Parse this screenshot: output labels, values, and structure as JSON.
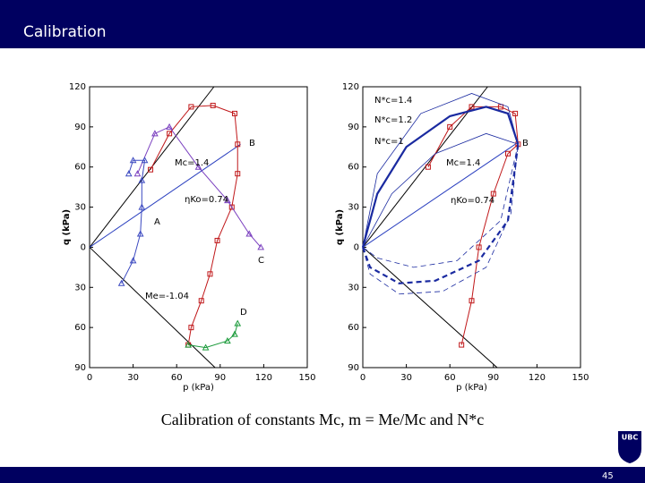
{
  "title": "Calibration",
  "caption": "Calibration of constants Mc, m = Me/Mc and N*c",
  "page_number": "45",
  "logo_text": "UBC",
  "chart_data": [
    {
      "type": "line",
      "xlabel": "p (kPa)",
      "ylabel": "q (kPa)",
      "xlim": [
        0,
        150
      ],
      "ylim": [
        -90,
        120
      ],
      "xticks": [
        0,
        30,
        60,
        90,
        120,
        150
      ],
      "yticks": [
        {
          "value": -90,
          "label": "90"
        },
        {
          "value": -60,
          "label": "60"
        },
        {
          "value": -30,
          "label": "30"
        },
        0,
        30,
        60,
        90,
        120
      ],
      "annotations": [
        "B",
        "C",
        "A",
        "D",
        "Mc=1.4",
        "ηKo=0.74",
        "Me=-1.04"
      ],
      "series": [
        {
          "color": "#000000",
          "x": [
            0,
            85.7
          ],
          "values": [
            0,
            120
          ]
        },
        {
          "color": "#000000",
          "x": [
            0,
            86.5
          ],
          "values": [
            0,
            -90
          ]
        },
        {
          "color": "#2a3fbf",
          "x": [
            0,
            104
          ],
          "values": [
            0,
            77
          ]
        },
        {
          "color": "#c0181a",
          "marker": "square",
          "x": [
            42,
            55,
            70,
            85,
            100,
            102,
            102,
            98,
            88,
            83,
            77,
            70,
            68
          ],
          "values": [
            58,
            85,
            105,
            106,
            100,
            77,
            55,
            30,
            5,
            -20,
            -40,
            -60,
            -73
          ]
        },
        {
          "color": "#7a3fbf",
          "marker": "triangle",
          "x": [
            33,
            45,
            55,
            75,
            95,
            110,
            118
          ],
          "values": [
            55,
            85,
            90,
            60,
            35,
            10,
            0
          ]
        },
        {
          "color": "#3a48c0",
          "marker": "triangle",
          "x": [
            22,
            30,
            35,
            36,
            36,
            38,
            30,
            27
          ],
          "values": [
            -27,
            -10,
            10,
            30,
            50,
            65,
            65,
            55
          ]
        },
        {
          "color": "#1a9a3a",
          "marker": "triangle",
          "x": [
            68,
            80,
            95,
            100,
            102
          ],
          "values": [
            -73,
            -75,
            -70,
            -65,
            -57
          ]
        }
      ]
    },
    {
      "type": "line",
      "xlabel": "p (kPa)",
      "ylabel": "q (kPa)",
      "xlim": [
        0,
        150
      ],
      "ylim": [
        -90,
        120
      ],
      "xticks": [
        0,
        30,
        60,
        90,
        120,
        150
      ],
      "yticks": [
        {
          "value": -90,
          "label": "90"
        },
        {
          "value": -60,
          "label": "60"
        },
        {
          "value": -30,
          "label": "30"
        },
        0,
        30,
        60,
        90,
        120
      ],
      "annotations": [
        "N*c=1.4",
        "N*c=1.2",
        "N*c=1",
        "Mc=1.4",
        "ηKo=0.74",
        "B"
      ],
      "series": [
        {
          "color": "#000000",
          "x": [
            0,
            86
          ],
          "values": [
            0,
            120
          ]
        },
        {
          "color": "#000000",
          "x": [
            0,
            92.6
          ],
          "values": [
            0,
            -90
          ]
        },
        {
          "color": "#2a3fbf",
          "x": [
            0,
            105
          ],
          "values": [
            0,
            77
          ]
        },
        {
          "color": "#c0181a",
          "marker": "square",
          "x": [
            45,
            60,
            75,
            95,
            105,
            107,
            100,
            90,
            80,
            75,
            68
          ],
          "values": [
            60,
            90,
            105,
            105,
            100,
            77,
            70,
            40,
            0,
            -40,
            -73
          ]
        },
        {
          "color": "#1a2aa0",
          "width": 2.2,
          "x": [
            0,
            10,
            30,
            60,
            85,
            100,
            107
          ],
          "values": [
            0,
            40,
            75,
            98,
            105,
            100,
            77
          ]
        },
        {
          "color": "#1a2aa0",
          "width": 0.8,
          "x": [
            0,
            10,
            40,
            75,
            100,
            107
          ],
          "values": [
            0,
            55,
            100,
            115,
            105,
            77
          ]
        },
        {
          "color": "#1a2aa0",
          "width": 0.8,
          "x": [
            0,
            20,
            50,
            85,
            107
          ],
          "values": [
            0,
            40,
            70,
            85,
            77
          ]
        },
        {
          "color": "#1a2aa0",
          "width": 2.2,
          "dash": true,
          "x": [
            0,
            5,
            25,
            50,
            80,
            100,
            107
          ],
          "values": [
            0,
            -15,
            -27,
            -25,
            -10,
            20,
            77
          ]
        },
        {
          "color": "#1a2aa0",
          "width": 0.8,
          "dash": true,
          "x": [
            0,
            5,
            25,
            55,
            85,
            102,
            107
          ],
          "values": [
            0,
            -20,
            -35,
            -33,
            -15,
            25,
            77
          ]
        },
        {
          "color": "#1a2aa0",
          "width": 0.8,
          "dash": true,
          "x": [
            0,
            10,
            35,
            65,
            95,
            107
          ],
          "values": [
            0,
            -8,
            -15,
            -10,
            20,
            77
          ]
        }
      ]
    }
  ]
}
